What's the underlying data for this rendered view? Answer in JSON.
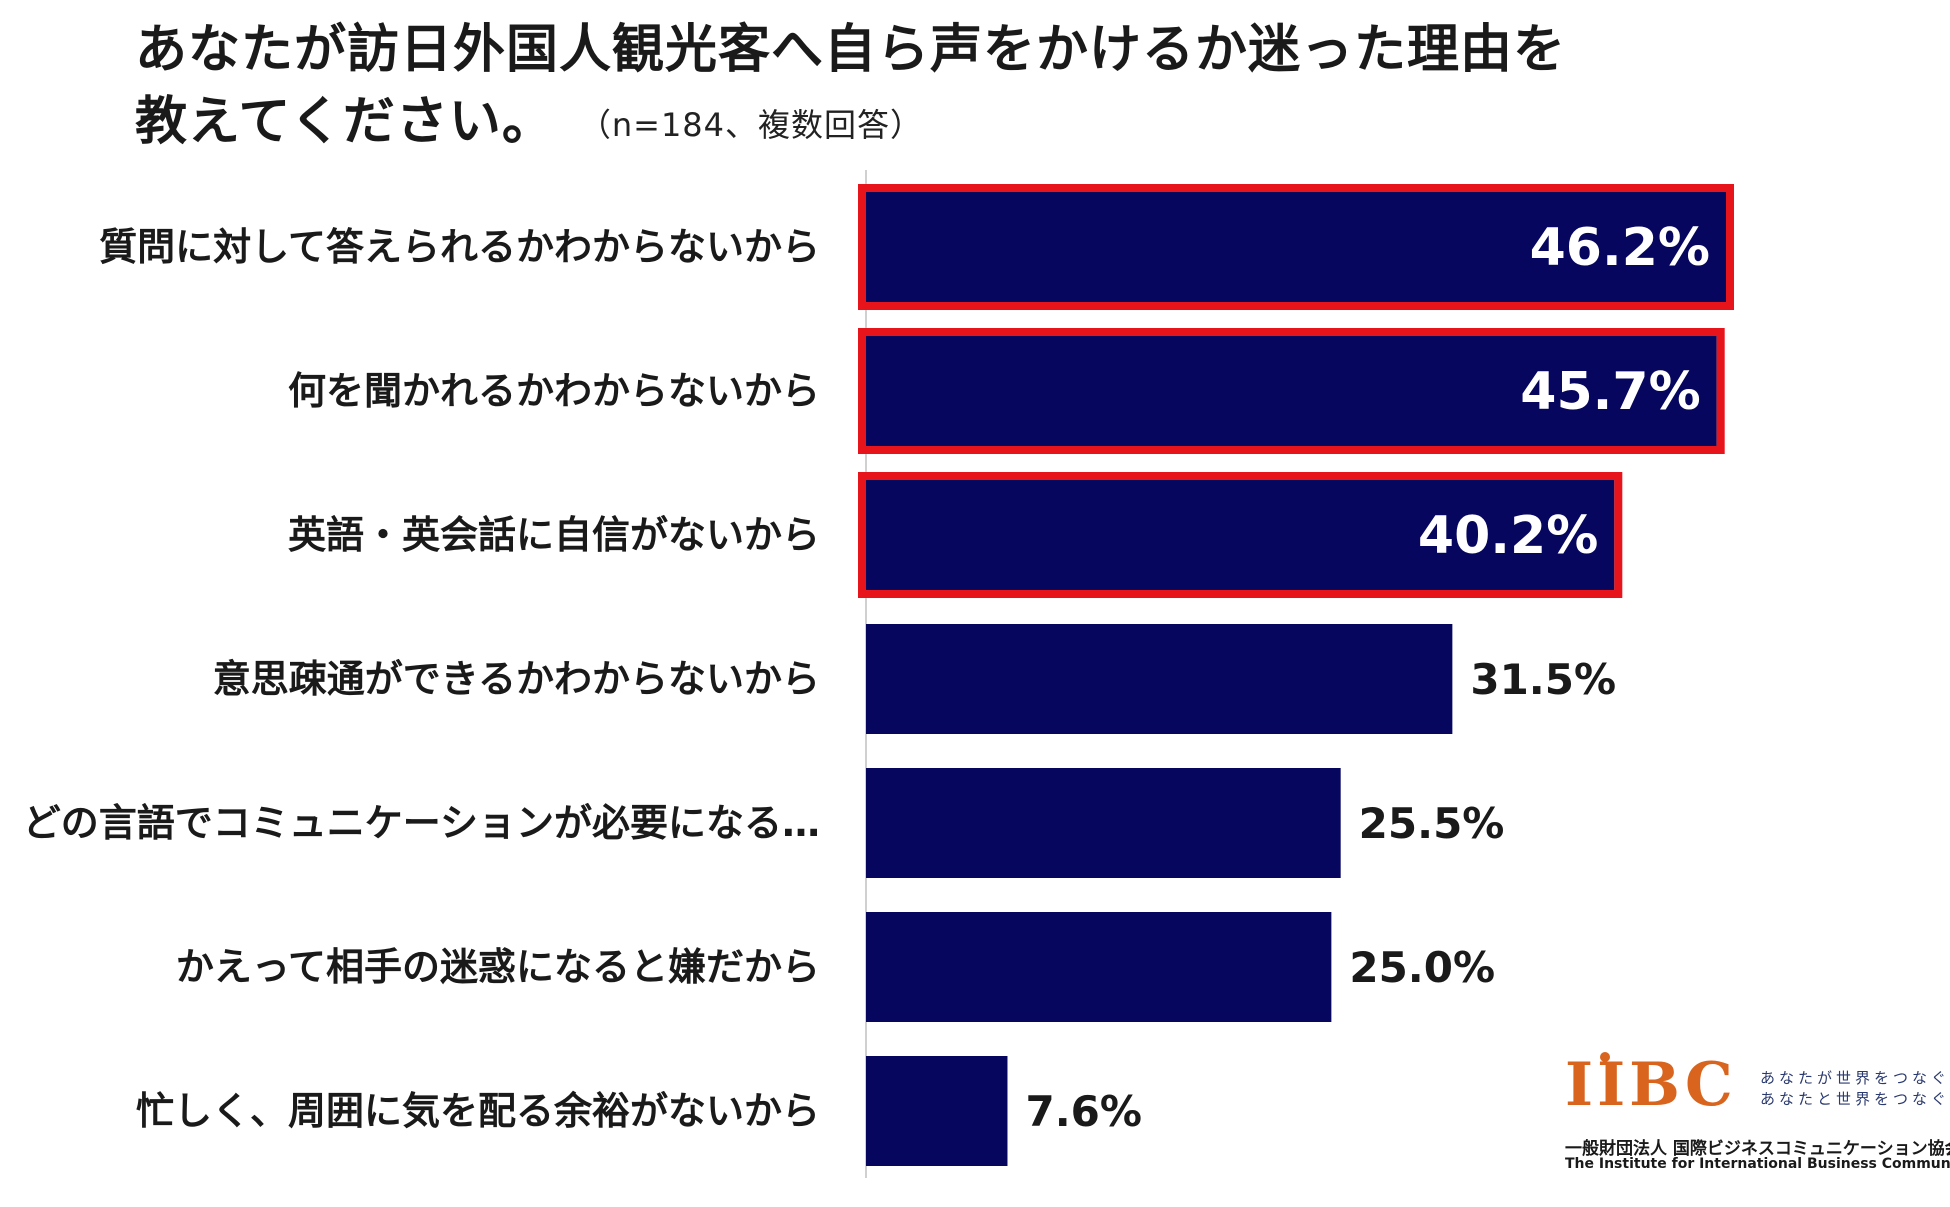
{
  "chart_data": {
    "type": "bar",
    "orientation": "horizontal",
    "title_line1": "あなたが訪日外国人観光客へ自ら声をかけるか迷った理由を",
    "title_line2": "教えてください。",
    "note": "（n=184、複数回答）",
    "categories": [
      "質問に対して答えられるかわからないから",
      "何を聞かれるかわからないから",
      "英語・英会話に自信がないから",
      "意思疎通ができるかわからないから",
      "どの言語でコミュニケーションが必要になる…",
      "かえって相手の迷惑になると嫌だから",
      "忙しく、周囲に気を配る余裕がないから"
    ],
    "values": [
      46.2,
      45.7,
      40.2,
      31.5,
      25.5,
      25.0,
      7.6
    ],
    "value_labels": [
      "46.2%",
      "45.7%",
      "40.2%",
      "31.5%",
      "25.5%",
      "25.0%",
      "7.6%"
    ],
    "highlighted": [
      true,
      true,
      true,
      false,
      false,
      false,
      false
    ],
    "unit": "%",
    "xlim": [
      0,
      50
    ],
    "grid": false,
    "bar_color": "#06065e",
    "highlight_color": "#e8141b"
  },
  "branding": {
    "logo_text": "IIBC",
    "tagline_line1": "あなたが世界をつなぐ",
    "tagline_line2": "あなたと世界をつなぐ",
    "org_name_ja": "一般財団法人 国際ビジネスコミュニケーション協会",
    "org_name_en": "The Institute for International Business Communication"
  }
}
